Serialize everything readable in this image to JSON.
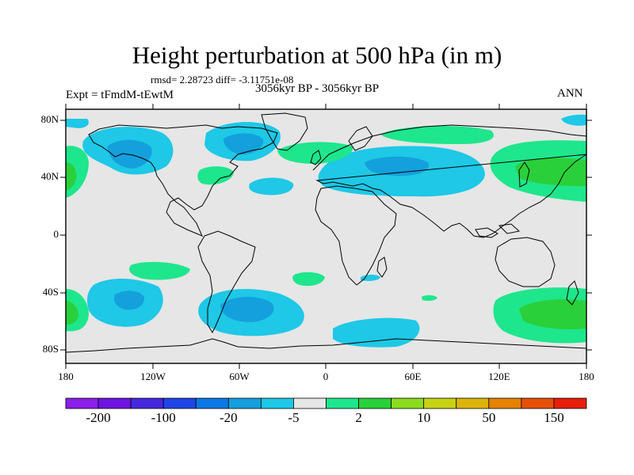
{
  "title": "Height perturbation at 500 hPa (in m)",
  "stats": "rmsd= 2.28723 diff= -3.11751e-08",
  "period": "3056kyr BP - 3056kyr BP",
  "experiment": "Expt = tFmdM-tEwtM",
  "season": "ANN",
  "lat_ticks": [
    "80N",
    "40N",
    "0",
    "40S",
    "80S"
  ],
  "lon_ticks": [
    "180",
    "120W",
    "60W",
    "0",
    "60E",
    "120E",
    "180"
  ],
  "colorbar": {
    "colors": [
      "#8c1eea",
      "#6e14e0",
      "#4628dc",
      "#1e46e6",
      "#0a78e6",
      "#14a0dc",
      "#1ec8e6",
      "#e6e6e6",
      "#1ee68c",
      "#2ad03a",
      "#8cdc1e",
      "#c8d214",
      "#dcb40a",
      "#e68200",
      "#e6500a",
      "#e61e0a"
    ],
    "labels": [
      "-200",
      "-100",
      "-20",
      "-5",
      "2",
      "10",
      "50",
      "150"
    ]
  },
  "fill_colors": {
    "background": "#e6e6e6",
    "neg_weak": "#1ec8e6",
    "neg_mid": "#14a0dc",
    "pos_weak": "#1ee68c",
    "pos_mid": "#2ad03a"
  }
}
